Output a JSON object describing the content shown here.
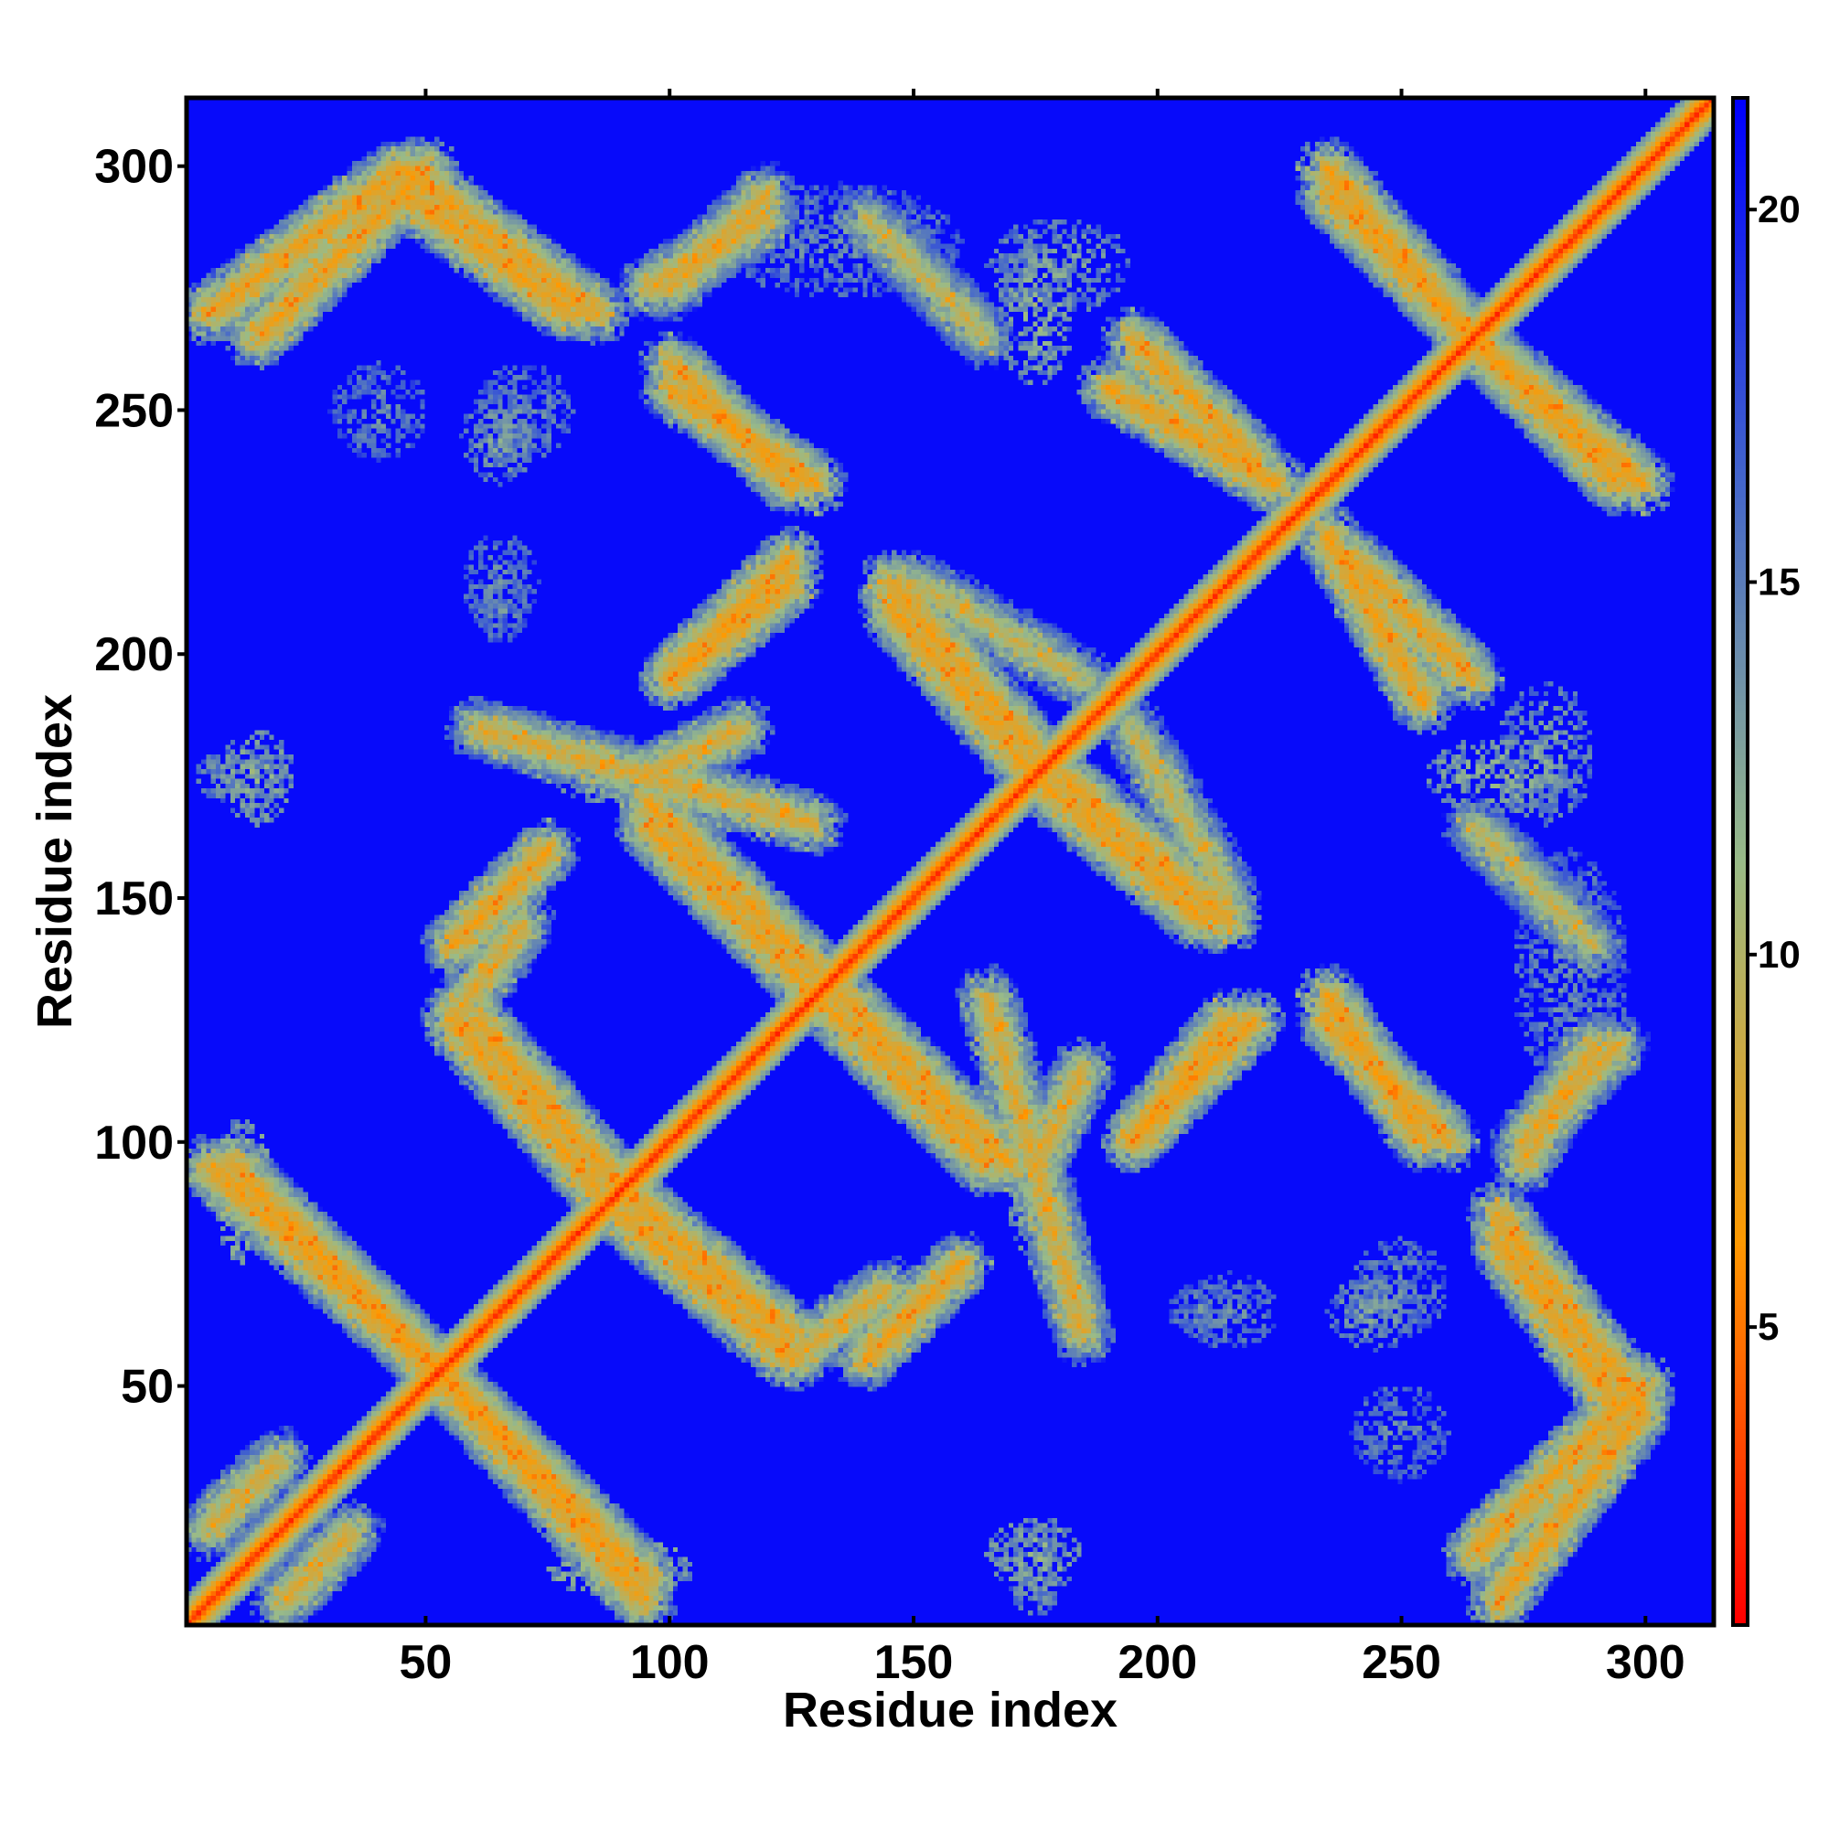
{
  "chart_data": {
    "type": "heatmap",
    "title": "",
    "xlabel": "Residue index",
    "ylabel": "Residue index",
    "n_residues": 314,
    "xlim": [
      1,
      314
    ],
    "ylim": [
      1,
      314
    ],
    "x_ticks": [
      50,
      100,
      150,
      200,
      250,
      300
    ],
    "y_ticks": [
      50,
      100,
      150,
      200,
      250,
      300
    ],
    "colorbar": {
      "ticks": [
        5,
        10,
        15,
        20
      ],
      "range": [
        1,
        21.5
      ],
      "colormap": [
        "#ff0000",
        "#ff9900",
        "#99bb88",
        "#4466cc",
        "#0000ff"
      ]
    },
    "background_value": 21,
    "diagonal_band": {
      "min_value": 2,
      "width_residues": 6
    },
    "contact_bands": [
      {
        "type": "antiparallel",
        "from": [
          5,
          95
        ],
        "to": [
          55,
          50
        ],
        "value": 10
      },
      {
        "type": "parallel",
        "from": [
          5,
          20
        ],
        "to": [
          20,
          35
        ],
        "value": 11
      },
      {
        "type": "antiparallel",
        "from": [
          60,
          45
        ],
        "to": [
          95,
          10
        ],
        "value": 10
      },
      {
        "type": "antiparallel",
        "from": [
          20,
          85
        ],
        "to": [
          55,
          50
        ],
        "value": 10
      },
      {
        "type": "antiparallel",
        "from": [
          55,
          125
        ],
        "to": [
          85,
          90
        ],
        "value": 10
      },
      {
        "type": "parallel",
        "from": [
          55,
          140
        ],
        "to": [
          75,
          160
        ],
        "value": 10
      },
      {
        "type": "antiparallel",
        "from": [
          90,
          90
        ],
        "to": [
          125,
          60
        ],
        "value": 10
      },
      {
        "type": "parallel",
        "from": [
          125,
          55
        ],
        "to": [
          145,
          70
        ],
        "value": 11
      },
      {
        "type": "antiparallel",
        "from": [
          95,
          170
        ],
        "to": [
          130,
          135
        ],
        "value": 10
      },
      {
        "type": "parallel",
        "from": [
          95,
          175
        ],
        "to": [
          115,
          185
        ],
        "value": 11
      },
      {
        "type": "parallel",
        "from": [
          100,
          195
        ],
        "to": [
          125,
          220
        ],
        "value": 10
      },
      {
        "type": "antiparallel",
        "from": [
          130,
          130
        ],
        "to": [
          165,
          95
        ],
        "value": 10
      },
      {
        "type": "antiparallel",
        "from": [
          145,
          215
        ],
        "to": [
          175,
          180
        ],
        "value": 10
      },
      {
        "type": "antiparallel",
        "from": [
          175,
          175
        ],
        "to": [
          210,
          145
        ],
        "value": 10
      },
      {
        "type": "parallel",
        "from": [
          195,
          100
        ],
        "to": [
          215,
          125
        ],
        "value": 10
      },
      {
        "type": "antiparallel",
        "from": [
          235,
          130
        ],
        "to": [
          255,
          100
        ],
        "value": 10
      },
      {
        "type": "antiparallel",
        "from": [
          235,
          225
        ],
        "to": [
          255,
          190
        ],
        "value": 10
      },
      {
        "type": "antiparallel",
        "from": [
          195,
          265
        ],
        "to": [
          220,
          240
        ],
        "value": 10
      },
      {
        "type": "antiparallel",
        "from": [
          235,
          300
        ],
        "to": [
          265,
          265
        ],
        "value": 10
      },
      {
        "type": "antiparallel",
        "from": [
          265,
          265
        ],
        "to": [
          295,
          235
        ],
        "value": 10
      },
      {
        "type": "parallel",
        "from": [
          265,
          15
        ],
        "to": [
          300,
          50
        ],
        "value": 10
      },
      {
        "type": "antiparallel",
        "from": [
          270,
          80
        ],
        "to": [
          295,
          45
        ],
        "value": 10
      },
      {
        "type": "parallel",
        "from": [
          275,
          95
        ],
        "to": [
          290,
          120
        ],
        "value": 11
      },
      {
        "type": "antiparallel",
        "from": [
          5,
          270
        ],
        "to": [
          45,
          300
        ],
        "value": 10
      },
      {
        "type": "antiparallel",
        "from": [
          45,
          300
        ],
        "to": [
          85,
          270
        ],
        "value": 10
      },
      {
        "type": "parallel",
        "from": [
          100,
          275
        ],
        "to": [
          120,
          295
        ],
        "value": 11
      },
      {
        "type": "antiparallel",
        "from": [
          100,
          260
        ],
        "to": [
          125,
          235
        ],
        "value": 10
      },
      {
        "type": "antiparallel",
        "from": [
          140,
          290
        ],
        "to": [
          165,
          265
        ],
        "value": 12
      },
      {
        "type": "parallel",
        "from": [
          165,
          130
        ],
        "to": [
          185,
          60
        ],
        "value": 11
      },
      {
        "type": "antiparallel",
        "from": [
          195,
          185
        ],
        "to": [
          215,
          150
        ],
        "value": 12
      }
    ],
    "contact_patches": [
      {
        "x": 10,
        "y": 92,
        "rx": 4,
        "ry": 10,
        "value": 9
      },
      {
        "x": 12,
        "y": 175,
        "rx": 10,
        "ry": 6,
        "value": 12
      },
      {
        "x": 70,
        "y": 250,
        "rx": 10,
        "ry": 10,
        "value": 13
      },
      {
        "x": 65,
        "y": 210,
        "rx": 6,
        "ry": 8,
        "value": 13
      },
      {
        "x": 90,
        "y": 12,
        "rx": 15,
        "ry": 6,
        "value": 10
      },
      {
        "x": 175,
        "y": 15,
        "rx": 10,
        "ry": 8,
        "value": 11
      },
      {
        "x": 215,
        "y": 65,
        "rx": 10,
        "ry": 8,
        "value": 13
      },
      {
        "x": 245,
        "y": 65,
        "rx": 10,
        "ry": 8,
        "value": 12
      },
      {
        "x": 250,
        "y": 40,
        "rx": 10,
        "ry": 10,
        "value": 13
      },
      {
        "x": 175,
        "y": 270,
        "rx": 8,
        "ry": 15,
        "value": 11
      },
      {
        "x": 175,
        "y": 90,
        "rx": 6,
        "ry": 15,
        "value": 11
      },
      {
        "x": 280,
        "y": 180,
        "rx": 10,
        "ry": 15,
        "value": 12
      },
      {
        "x": 285,
        "y": 135,
        "rx": 12,
        "ry": 25,
        "value": 13
      }
    ]
  }
}
